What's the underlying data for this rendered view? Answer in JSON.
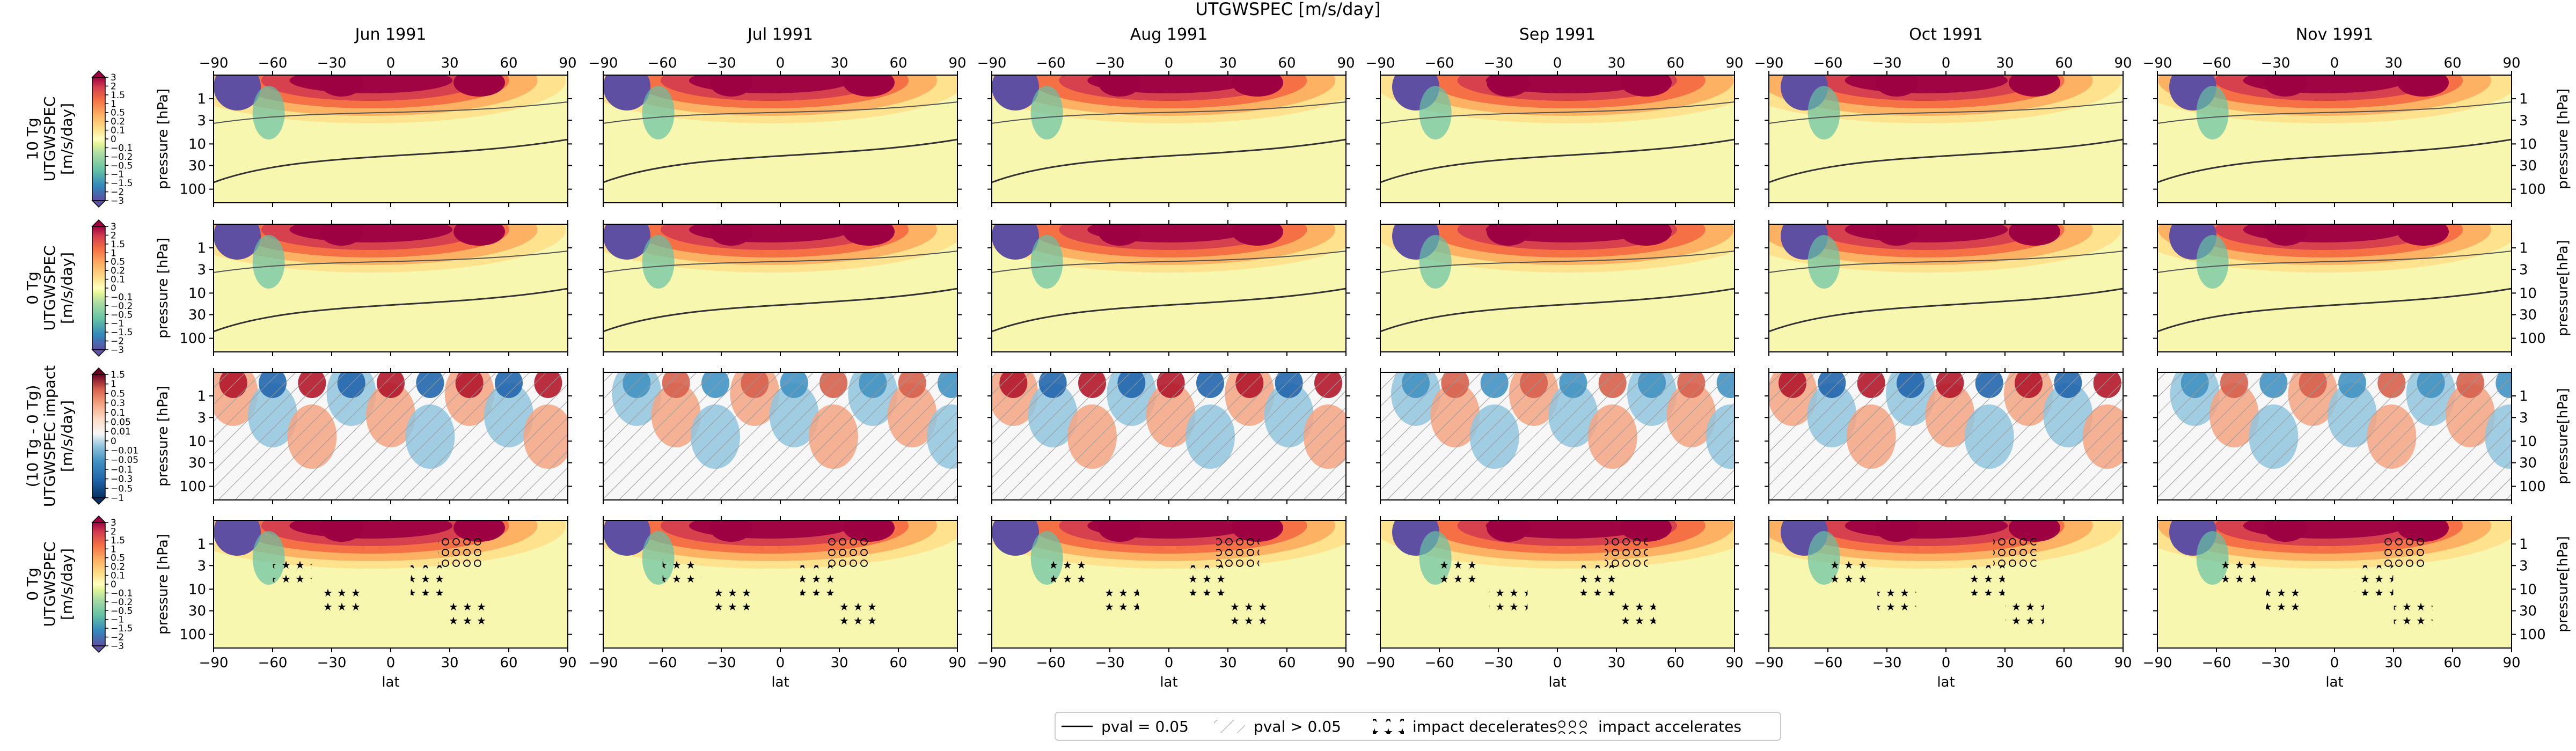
{
  "figure": {
    "suptitle": "UTGWSPEC [m/s/day]",
    "months": [
      "Jun 1991",
      "Jul 1991",
      "Aug 1991",
      "Sep 1991",
      "Oct 1991",
      "Nov 1991"
    ],
    "row_ylabel_left": "pressure [hPa]",
    "row_ylabel_right": [
      "pressure [hPa]",
      "pressure[hPa]",
      "pressure[hPa]",
      "pressure[hPa]"
    ],
    "xlabel": "lat",
    "legend": [
      {
        "label": "pval = 0.05",
        "style": "line"
      },
      {
        "label": "pval > 0.05",
        "style": "hatch"
      },
      {
        "label": "impact decelerates",
        "style": "stars"
      },
      {
        "label": "impact accelerates",
        "style": "circles"
      }
    ],
    "colors": {
      "positive_max": "#9e0142",
      "positive_mid": "#f46d43",
      "neutral": "#ffffbf",
      "negative_mid": "#66c2a5",
      "negative_max": "#5e4fa2",
      "diff_pos": "#67001f",
      "diff_neg": "#053061"
    }
  },
  "chart_data": [
    {
      "type": "heatmap",
      "row": "10 Tg",
      "colorbar_label": [
        "10 Tg",
        "UTGWSPEC",
        "[m/s/day]"
      ],
      "colorbar_ticks": [
        "-3",
        "-2",
        "-1.5",
        "-1",
        "-0.5",
        "-0.2",
        "-0.1",
        "0",
        "0.1",
        "0.2",
        "0.5",
        "1",
        "1.5",
        "2",
        "3"
      ],
      "xticks": [
        "-90",
        "-60",
        "-30",
        "0",
        "30",
        "60",
        "90"
      ],
      "yticks": [
        "1",
        "3",
        "10",
        "30",
        "100"
      ],
      "xlim": [
        -90,
        90
      ],
      "ylim_hPa": [
        200,
        0.3
      ],
      "panels": [
        "Jun 1991",
        "Jul 1991",
        "Aug 1991",
        "Sep 1991",
        "Oct 1991",
        "Nov 1991"
      ]
    },
    {
      "type": "heatmap",
      "row": "0 Tg",
      "colorbar_label": [
        "0 Tg",
        "UTGWSPEC",
        "[m/s/day]"
      ],
      "colorbar_ticks": [
        "-3",
        "-2",
        "-1.5",
        "-1",
        "-0.5",
        "-0.2",
        "-0.1",
        "0",
        "0.1",
        "0.2",
        "0.5",
        "1",
        "1.5",
        "2",
        "3"
      ],
      "xticks": [
        "-90",
        "-60",
        "-30",
        "0",
        "30",
        "60",
        "90"
      ],
      "yticks": [
        "1",
        "3",
        "10",
        "30",
        "100"
      ],
      "xlim": [
        -90,
        90
      ],
      "ylim_hPa": [
        200,
        0.3
      ],
      "panels": [
        "Jun 1991",
        "Jul 1991",
        "Aug 1991",
        "Sep 1991",
        "Oct 1991",
        "Nov 1991"
      ]
    },
    {
      "type": "heatmap",
      "row": "(10 Tg - 0 Tg) impact",
      "colorbar_label": [
        "(10 Tg - 0 Tg)",
        "UTGWSPEC impact",
        "[m/s/day]"
      ],
      "colorbar_ticks": [
        "-1",
        "-0.5",
        "-0.3",
        "-0.1",
        "-0.05",
        "-0.01",
        "0",
        "0.01",
        "0.05",
        "0.1",
        "0.3",
        "0.5",
        "1",
        "1.5"
      ],
      "xticks": [
        "-90",
        "-60",
        "-30",
        "0",
        "30",
        "60",
        "90"
      ],
      "yticks": [
        "1",
        "3",
        "10",
        "30",
        "100"
      ],
      "xlim": [
        -90,
        90
      ],
      "ylim_hPa": [
        200,
        0.3
      ],
      "panels": [
        "Jun 1991",
        "Jul 1991",
        "Aug 1991",
        "Sep 1991",
        "Oct 1991",
        "Nov 1991"
      ]
    },
    {
      "type": "heatmap",
      "row": "0 Tg with significance markers",
      "colorbar_label": [
        "0 Tg",
        "UTGWSPEC",
        "[m/s/day]"
      ],
      "colorbar_ticks": [
        "-3",
        "-2",
        "-1.5",
        "-1",
        "-0.5",
        "-0.2",
        "-0.1",
        "0",
        "0.1",
        "0.2",
        "0.5",
        "1",
        "1.5",
        "2",
        "3"
      ],
      "xticks": [
        "-90",
        "-60",
        "-30",
        "0",
        "30",
        "60",
        "90"
      ],
      "yticks": [
        "1",
        "3",
        "10",
        "30",
        "100"
      ],
      "xlim": [
        -90,
        90
      ],
      "ylim_hPa": [
        200,
        0.3
      ],
      "panels": [
        "Jun 1991",
        "Jul 1991",
        "Aug 1991",
        "Sep 1991",
        "Oct 1991",
        "Nov 1991"
      ]
    }
  ]
}
